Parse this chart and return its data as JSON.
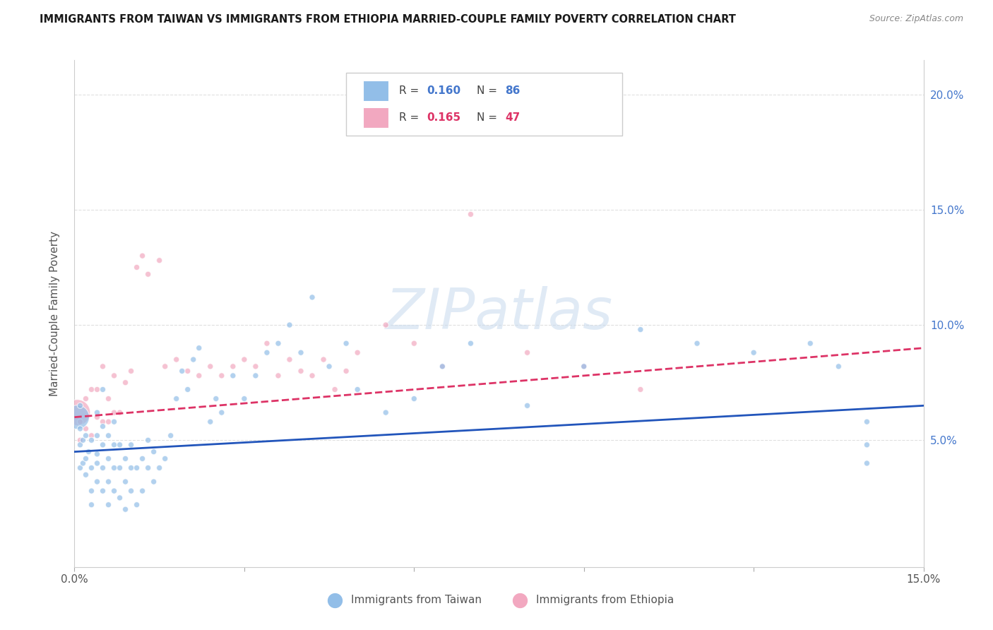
{
  "title": "IMMIGRANTS FROM TAIWAN VS IMMIGRANTS FROM ETHIOPIA MARRIED-COUPLE FAMILY POVERTY CORRELATION CHART",
  "source": "Source: ZipAtlas.com",
  "ylabel": "Married-Couple Family Poverty",
  "x_min": 0.0,
  "x_max": 0.15,
  "y_min": -0.005,
  "y_max": 0.215,
  "taiwan_color": "#92BEE8",
  "ethiopia_color": "#F2A8C0",
  "taiwan_line_color": "#2255BB",
  "ethiopia_line_color": "#DD3366",
  "taiwan_R": "0.160",
  "taiwan_N": "86",
  "ethiopia_R": "0.165",
  "ethiopia_N": "47",
  "taiwan_x": [
    0.0005,
    0.001,
    0.001,
    0.001,
    0.001,
    0.0015,
    0.0015,
    0.002,
    0.002,
    0.002,
    0.0025,
    0.003,
    0.003,
    0.003,
    0.003,
    0.004,
    0.004,
    0.004,
    0.004,
    0.004,
    0.005,
    0.005,
    0.005,
    0.005,
    0.005,
    0.006,
    0.006,
    0.006,
    0.006,
    0.007,
    0.007,
    0.007,
    0.007,
    0.008,
    0.008,
    0.008,
    0.009,
    0.009,
    0.009,
    0.01,
    0.01,
    0.01,
    0.011,
    0.011,
    0.012,
    0.012,
    0.013,
    0.013,
    0.014,
    0.014,
    0.015,
    0.016,
    0.017,
    0.018,
    0.019,
    0.02,
    0.021,
    0.022,
    0.024,
    0.025,
    0.026,
    0.028,
    0.03,
    0.032,
    0.034,
    0.036,
    0.038,
    0.04,
    0.042,
    0.045,
    0.048,
    0.05,
    0.055,
    0.06,
    0.065,
    0.07,
    0.08,
    0.09,
    0.1,
    0.11,
    0.12,
    0.13,
    0.135,
    0.14,
    0.14,
    0.14
  ],
  "taiwan_y": [
    0.06,
    0.065,
    0.055,
    0.048,
    0.038,
    0.05,
    0.04,
    0.042,
    0.052,
    0.035,
    0.045,
    0.038,
    0.05,
    0.028,
    0.022,
    0.044,
    0.032,
    0.052,
    0.062,
    0.04,
    0.028,
    0.038,
    0.048,
    0.056,
    0.072,
    0.022,
    0.032,
    0.042,
    0.052,
    0.028,
    0.038,
    0.048,
    0.058,
    0.025,
    0.038,
    0.048,
    0.02,
    0.032,
    0.042,
    0.028,
    0.038,
    0.048,
    0.022,
    0.038,
    0.028,
    0.042,
    0.038,
    0.05,
    0.032,
    0.045,
    0.038,
    0.042,
    0.052,
    0.068,
    0.08,
    0.072,
    0.085,
    0.09,
    0.058,
    0.068,
    0.062,
    0.078,
    0.068,
    0.078,
    0.088,
    0.092,
    0.1,
    0.088,
    0.112,
    0.082,
    0.092,
    0.072,
    0.062,
    0.068,
    0.082,
    0.092,
    0.065,
    0.082,
    0.098,
    0.092,
    0.088,
    0.092,
    0.082,
    0.058,
    0.048,
    0.04
  ],
  "taiwan_size": [
    600,
    35,
    35,
    35,
    35,
    35,
    35,
    35,
    35,
    35,
    35,
    35,
    35,
    35,
    35,
    35,
    35,
    35,
    35,
    35,
    35,
    35,
    35,
    35,
    35,
    35,
    35,
    35,
    35,
    35,
    35,
    35,
    35,
    35,
    35,
    35,
    35,
    35,
    35,
    35,
    35,
    35,
    35,
    35,
    35,
    35,
    35,
    35,
    35,
    35,
    35,
    35,
    35,
    35,
    35,
    35,
    35,
    35,
    35,
    35,
    35,
    35,
    35,
    35,
    35,
    35,
    35,
    35,
    35,
    35,
    35,
    35,
    35,
    35,
    35,
    35,
    35,
    35,
    35,
    35,
    35,
    35,
    35,
    35,
    35,
    35
  ],
  "ethiopia_x": [
    0.0005,
    0.001,
    0.001,
    0.002,
    0.002,
    0.003,
    0.003,
    0.004,
    0.004,
    0.005,
    0.005,
    0.006,
    0.006,
    0.007,
    0.007,
    0.008,
    0.009,
    0.01,
    0.011,
    0.012,
    0.013,
    0.015,
    0.016,
    0.018,
    0.02,
    0.022,
    0.024,
    0.026,
    0.028,
    0.03,
    0.032,
    0.034,
    0.036,
    0.038,
    0.04,
    0.042,
    0.044,
    0.046,
    0.048,
    0.05,
    0.055,
    0.06,
    0.065,
    0.07,
    0.08,
    0.09,
    0.1
  ],
  "ethiopia_y": [
    0.062,
    0.058,
    0.05,
    0.055,
    0.068,
    0.052,
    0.072,
    0.06,
    0.072,
    0.058,
    0.082,
    0.058,
    0.068,
    0.062,
    0.078,
    0.062,
    0.075,
    0.08,
    0.125,
    0.13,
    0.122,
    0.128,
    0.082,
    0.085,
    0.08,
    0.078,
    0.082,
    0.078,
    0.082,
    0.085,
    0.082,
    0.092,
    0.078,
    0.085,
    0.08,
    0.078,
    0.085,
    0.072,
    0.08,
    0.088,
    0.1,
    0.092,
    0.082,
    0.148,
    0.088,
    0.082,
    0.072
  ],
  "ethiopia_size": [
    700,
    35,
    35,
    35,
    35,
    35,
    35,
    35,
    35,
    35,
    35,
    35,
    35,
    35,
    35,
    35,
    35,
    35,
    35,
    35,
    35,
    35,
    35,
    35,
    35,
    35,
    35,
    35,
    35,
    35,
    35,
    35,
    35,
    35,
    35,
    35,
    35,
    35,
    35,
    35,
    35,
    35,
    35,
    35,
    35,
    35,
    35
  ]
}
